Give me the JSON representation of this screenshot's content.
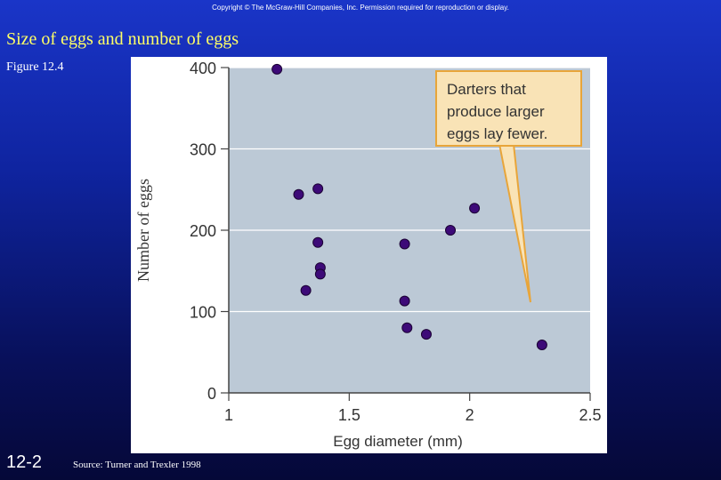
{
  "copyright": "Copyright © The McGraw-Hill Companies, Inc. Permission required for reproduction or display.",
  "slide": {
    "title": "Size of eggs and number of eggs",
    "figure_label": "Figure 12.4",
    "number": "12-2",
    "source": "Source: Turner and Trexler 1998"
  },
  "colors": {
    "plot_background": "#bcc9d6",
    "point_fill": "#3d0a78",
    "callout_fill": "#f9e3b6",
    "callout_border": "#e8a53a"
  },
  "chart_data": {
    "type": "scatter",
    "xlabel": "Egg diameter (mm)",
    "ylabel": "Number of eggs",
    "xlim": [
      1,
      2.5
    ],
    "ylim": [
      0,
      400
    ],
    "x_ticks": [
      "1",
      "1.5",
      "2",
      "2.5"
    ],
    "y_ticks": [
      "0",
      "100",
      "200",
      "300",
      "400"
    ],
    "grid": true,
    "annotation": [
      "Darters that",
      "produce larger",
      "eggs lay fewer."
    ],
    "points": [
      {
        "x": 1.2,
        "y": 398
      },
      {
        "x": 1.29,
        "y": 244
      },
      {
        "x": 1.37,
        "y": 251
      },
      {
        "x": 1.37,
        "y": 185
      },
      {
        "x": 1.38,
        "y": 154
      },
      {
        "x": 1.38,
        "y": 146
      },
      {
        "x": 1.32,
        "y": 126
      },
      {
        "x": 1.73,
        "y": 183
      },
      {
        "x": 1.73,
        "y": 113
      },
      {
        "x": 1.74,
        "y": 80
      },
      {
        "x": 1.82,
        "y": 72
      },
      {
        "x": 1.92,
        "y": 200
      },
      {
        "x": 2.02,
        "y": 227
      },
      {
        "x": 2.3,
        "y": 59
      }
    ]
  }
}
